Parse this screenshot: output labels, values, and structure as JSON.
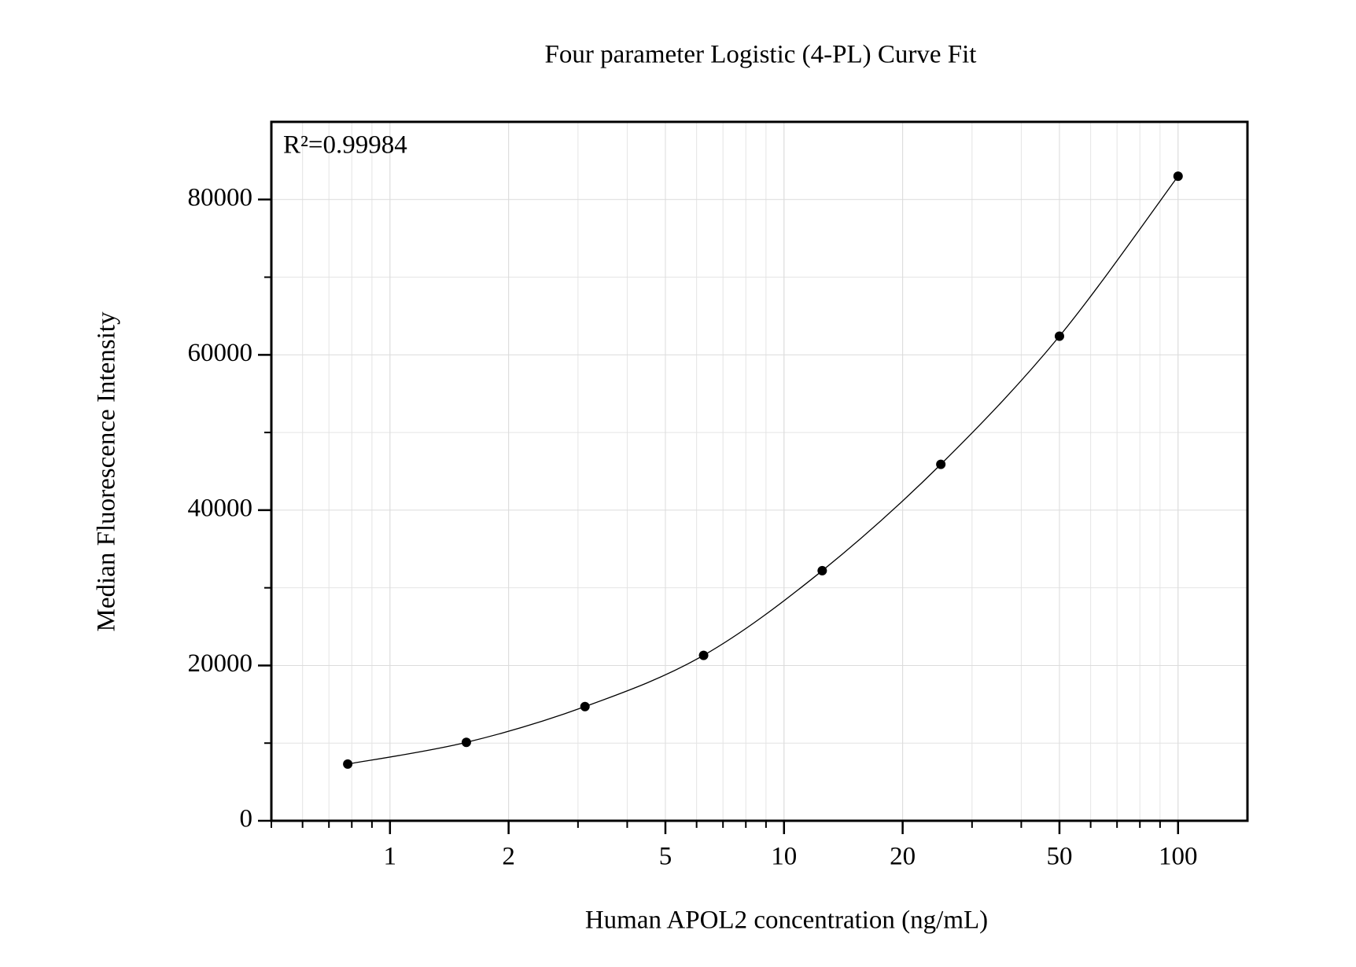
{
  "chart_data": {
    "type": "scatter",
    "title": "Four parameter Logistic (4-PL) Curve Fit",
    "x_label": "Human APOL2 concentration (ng/mL)",
    "y_label": "Median Fluorescence Intensity",
    "annotation": "R²=0.99984",
    "x_scale": "log",
    "grid": true,
    "fit_line": true,
    "xlim": [
      0.5,
      150
    ],
    "xticks": [
      1,
      2,
      5,
      10,
      20,
      50,
      100
    ],
    "ylim": [
      0,
      90000
    ],
    "yticks": [
      0,
      20000,
      40000,
      60000,
      80000
    ],
    "series": [
      {
        "color": "#000000",
        "x": [
          0.78125,
          1.5625,
          3.125,
          6.25,
          12.5,
          25,
          50,
          100
        ],
        "values": [
          7300,
          10100,
          14700,
          21300,
          32200,
          45900,
          62400,
          83000
        ]
      }
    ]
  }
}
